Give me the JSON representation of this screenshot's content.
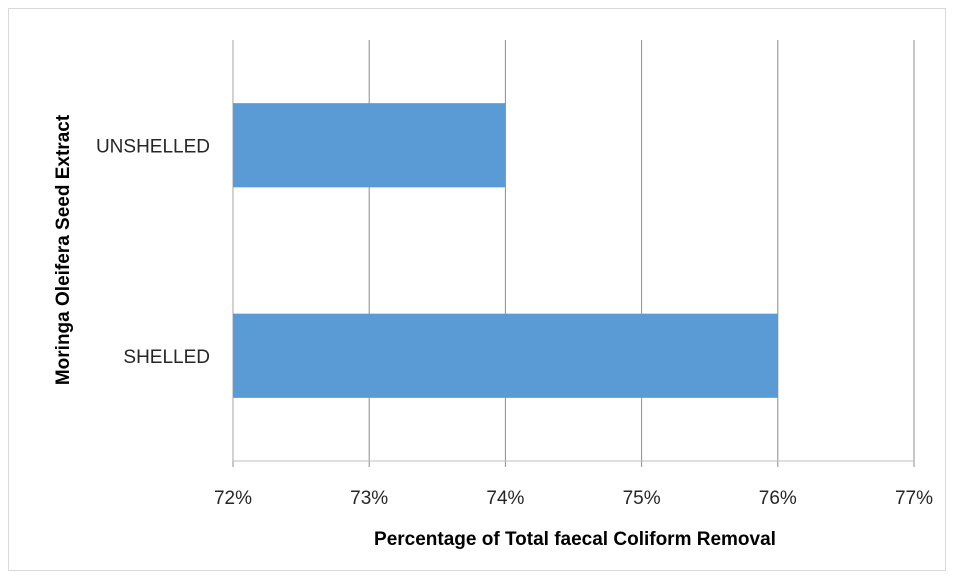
{
  "chart_data": {
    "type": "bar",
    "orientation": "horizontal",
    "categories": [
      "SHELLED",
      "UNSHELLED"
    ],
    "values": [
      76,
      74
    ],
    "unit": "%",
    "xlabel": "Percentage of Total faecal Coliform Removal",
    "ylabel": "Moringa Oleifera Seed Extract",
    "xlim": [
      72,
      77
    ],
    "xticks": [
      "72%",
      "73%",
      "74%",
      "75%",
      "76%",
      "77%"
    ],
    "grid": "vertical",
    "legend": "none",
    "bar_color": "#5b9bd5"
  }
}
